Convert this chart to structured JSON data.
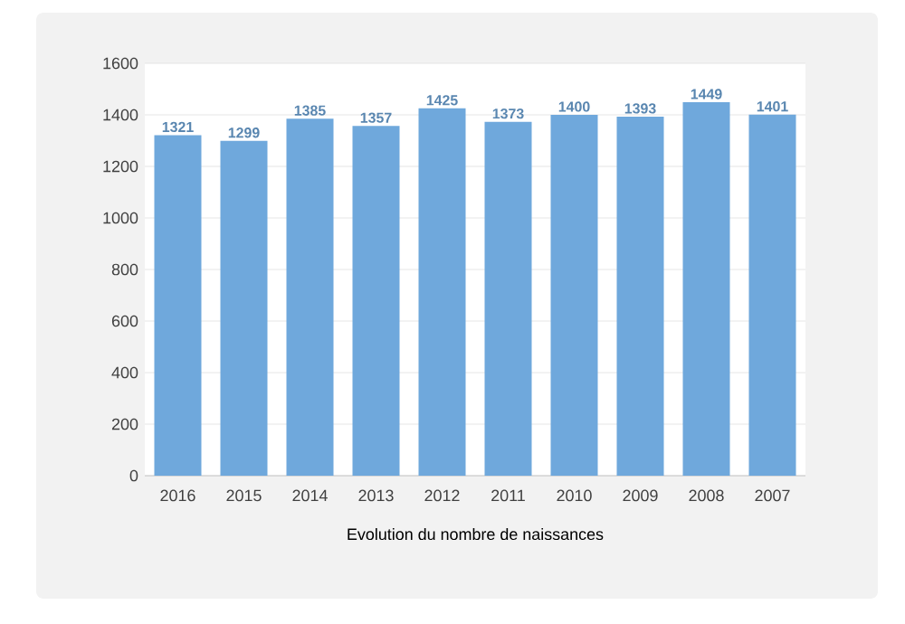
{
  "chart_data": {
    "type": "bar",
    "xlabel": "Evolution du nombre de naissances",
    "categories": [
      "2016",
      "2015",
      "2014",
      "2013",
      "2012",
      "2011",
      "2010",
      "2009",
      "2008",
      "2007"
    ],
    "values": [
      1321,
      1299,
      1385,
      1357,
      1425,
      1373,
      1400,
      1393,
      1449,
      1401
    ],
    "color": "#6fa8dc",
    "ylim": [
      0,
      1600
    ],
    "yticks": [
      0,
      200,
      400,
      600,
      800,
      1000,
      1200,
      1400,
      1600
    ],
    "grid": "y",
    "data_labels": true
  }
}
